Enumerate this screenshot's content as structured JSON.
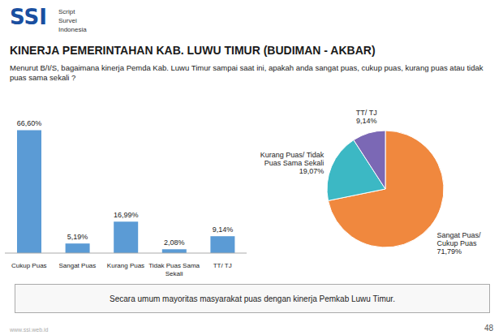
{
  "chart_data": [
    {
      "type": "bar",
      "title": "KINERJA PEMERINTAHAN KAB. LUWU TIMUR (BUDIMAN - AKBAR)",
      "subtitle": "Menurut B/I/S, bagaimana kinerja Pemda Kab. Luwu Timur sampai saat ini, apakah anda sangat puas, cukup puas, kurang puas atau tidak puas sama sekali ?",
      "annotations": [
        "SSI",
        "Script",
        "Survei",
        "Indonesia",
        "Secara umum mayoritas masyarakat puas dengan kinerja Pemkab Luwu Timur.",
        "48",
        "www.ssi.web.id"
      ],
      "categories": [
        "Cukup Puas",
        "Sangat Puas",
        "Kurang Puas",
        "Tidak Puas Sama\nSekali",
        "TT/ TJ"
      ],
      "values": [
        66.6,
        5.19,
        16.99,
        2.08,
        9.14
      ],
      "value_labels": [
        "66,60%",
        "5,19%",
        "16,99%",
        "2,08%",
        "9,14%"
      ],
      "data_labels": true,
      "color": "#5b9bd5",
      "ylim": [
        0,
        80
      ],
      "tick_labels": "x",
      "grid": false
    },
    {
      "type": "pie",
      "categories": [
        "Sangat Puas/\nCukup Puas",
        "Kurang Puas/ Tidak\nPuas Sama Sekali",
        "TT/ TJ"
      ],
      "values": [
        71.79,
        19.07,
        9.14
      ],
      "value_labels": [
        "71,79%",
        "19,07%",
        "9,14%"
      ],
      "data_labels": true,
      "colors": [
        "#f0883e",
        "#3cb8c4",
        "#7b68b5"
      ]
    }
  ]
}
